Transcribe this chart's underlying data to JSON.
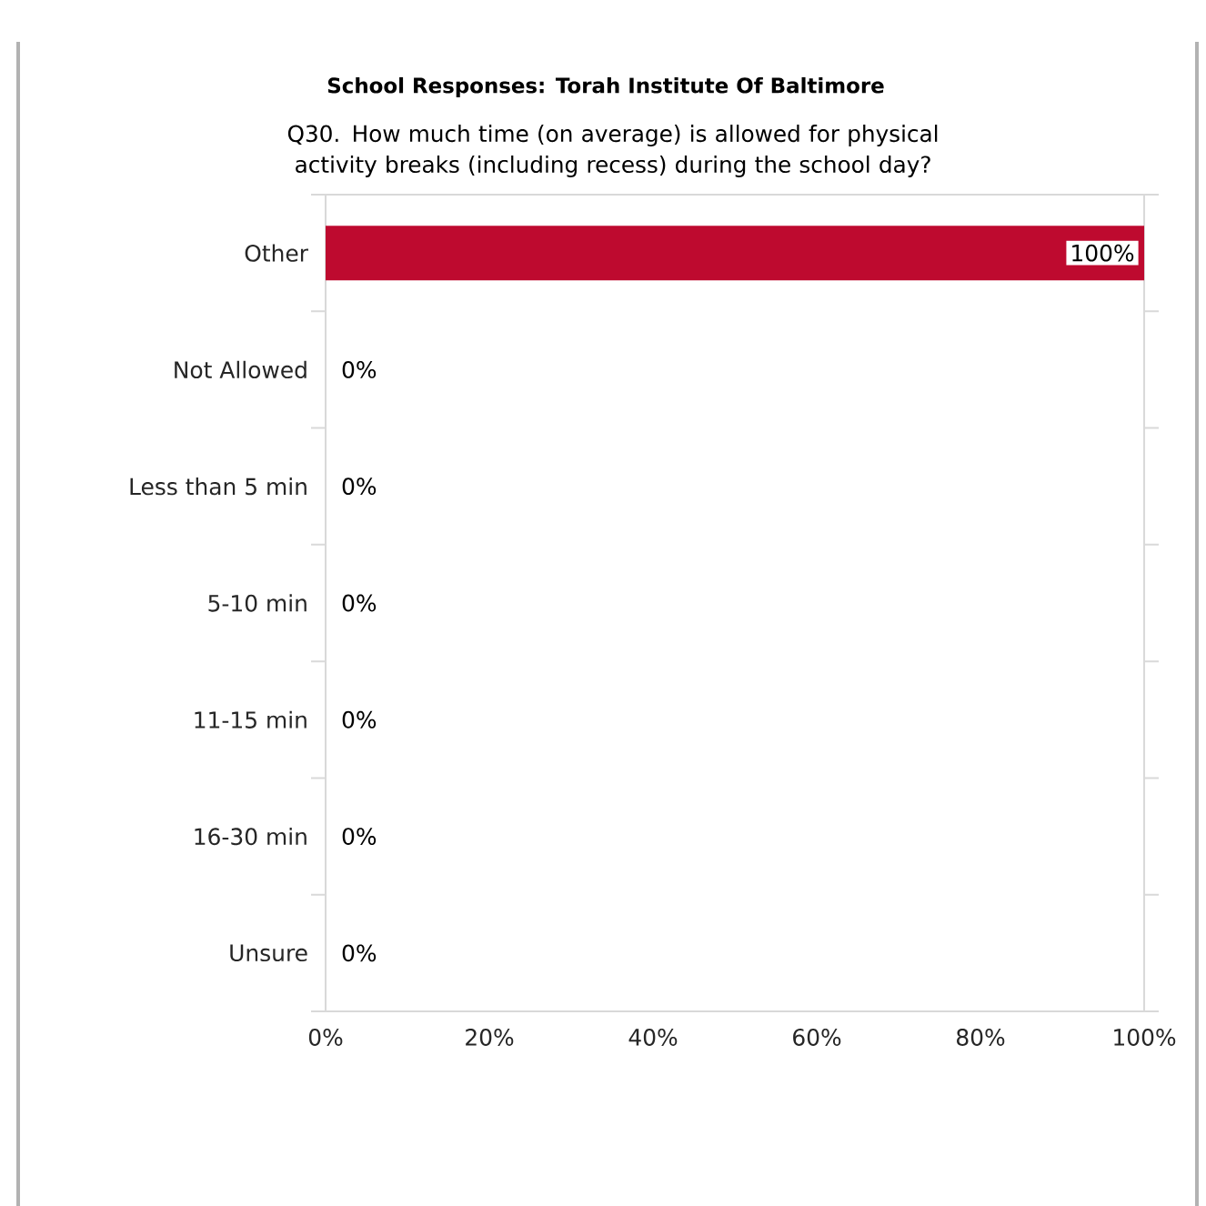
{
  "chart_data": {
    "type": "bar",
    "orientation": "horizontal",
    "title": "School Responses: Torah Institute Of Baltimore",
    "subtitle": "Q30. How much time (on average) is allowed for physical activity breaks (including recess) during the school day?",
    "categories": [
      "Other",
      "Not Allowed",
      "Less than 5 min",
      "5-10 min",
      "11-15 min",
      "16-30 min",
      "Unsure"
    ],
    "values": [
      100,
      0,
      0,
      0,
      0,
      0,
      0
    ],
    "value_labels": [
      "100%",
      "0%",
      "0%",
      "0%",
      "0%",
      "0%",
      "0%"
    ],
    "color": "#be0a2f",
    "xlim": [
      0,
      100
    ],
    "xticks": [
      {
        "value": 0,
        "label": "0%"
      },
      {
        "value": 20,
        "label": "20%"
      },
      {
        "value": 40,
        "label": "40%"
      },
      {
        "value": 60,
        "label": "60%"
      },
      {
        "value": 80,
        "label": "80%"
      },
      {
        "value": 100,
        "label": "100%"
      }
    ],
    "grid": false
  }
}
